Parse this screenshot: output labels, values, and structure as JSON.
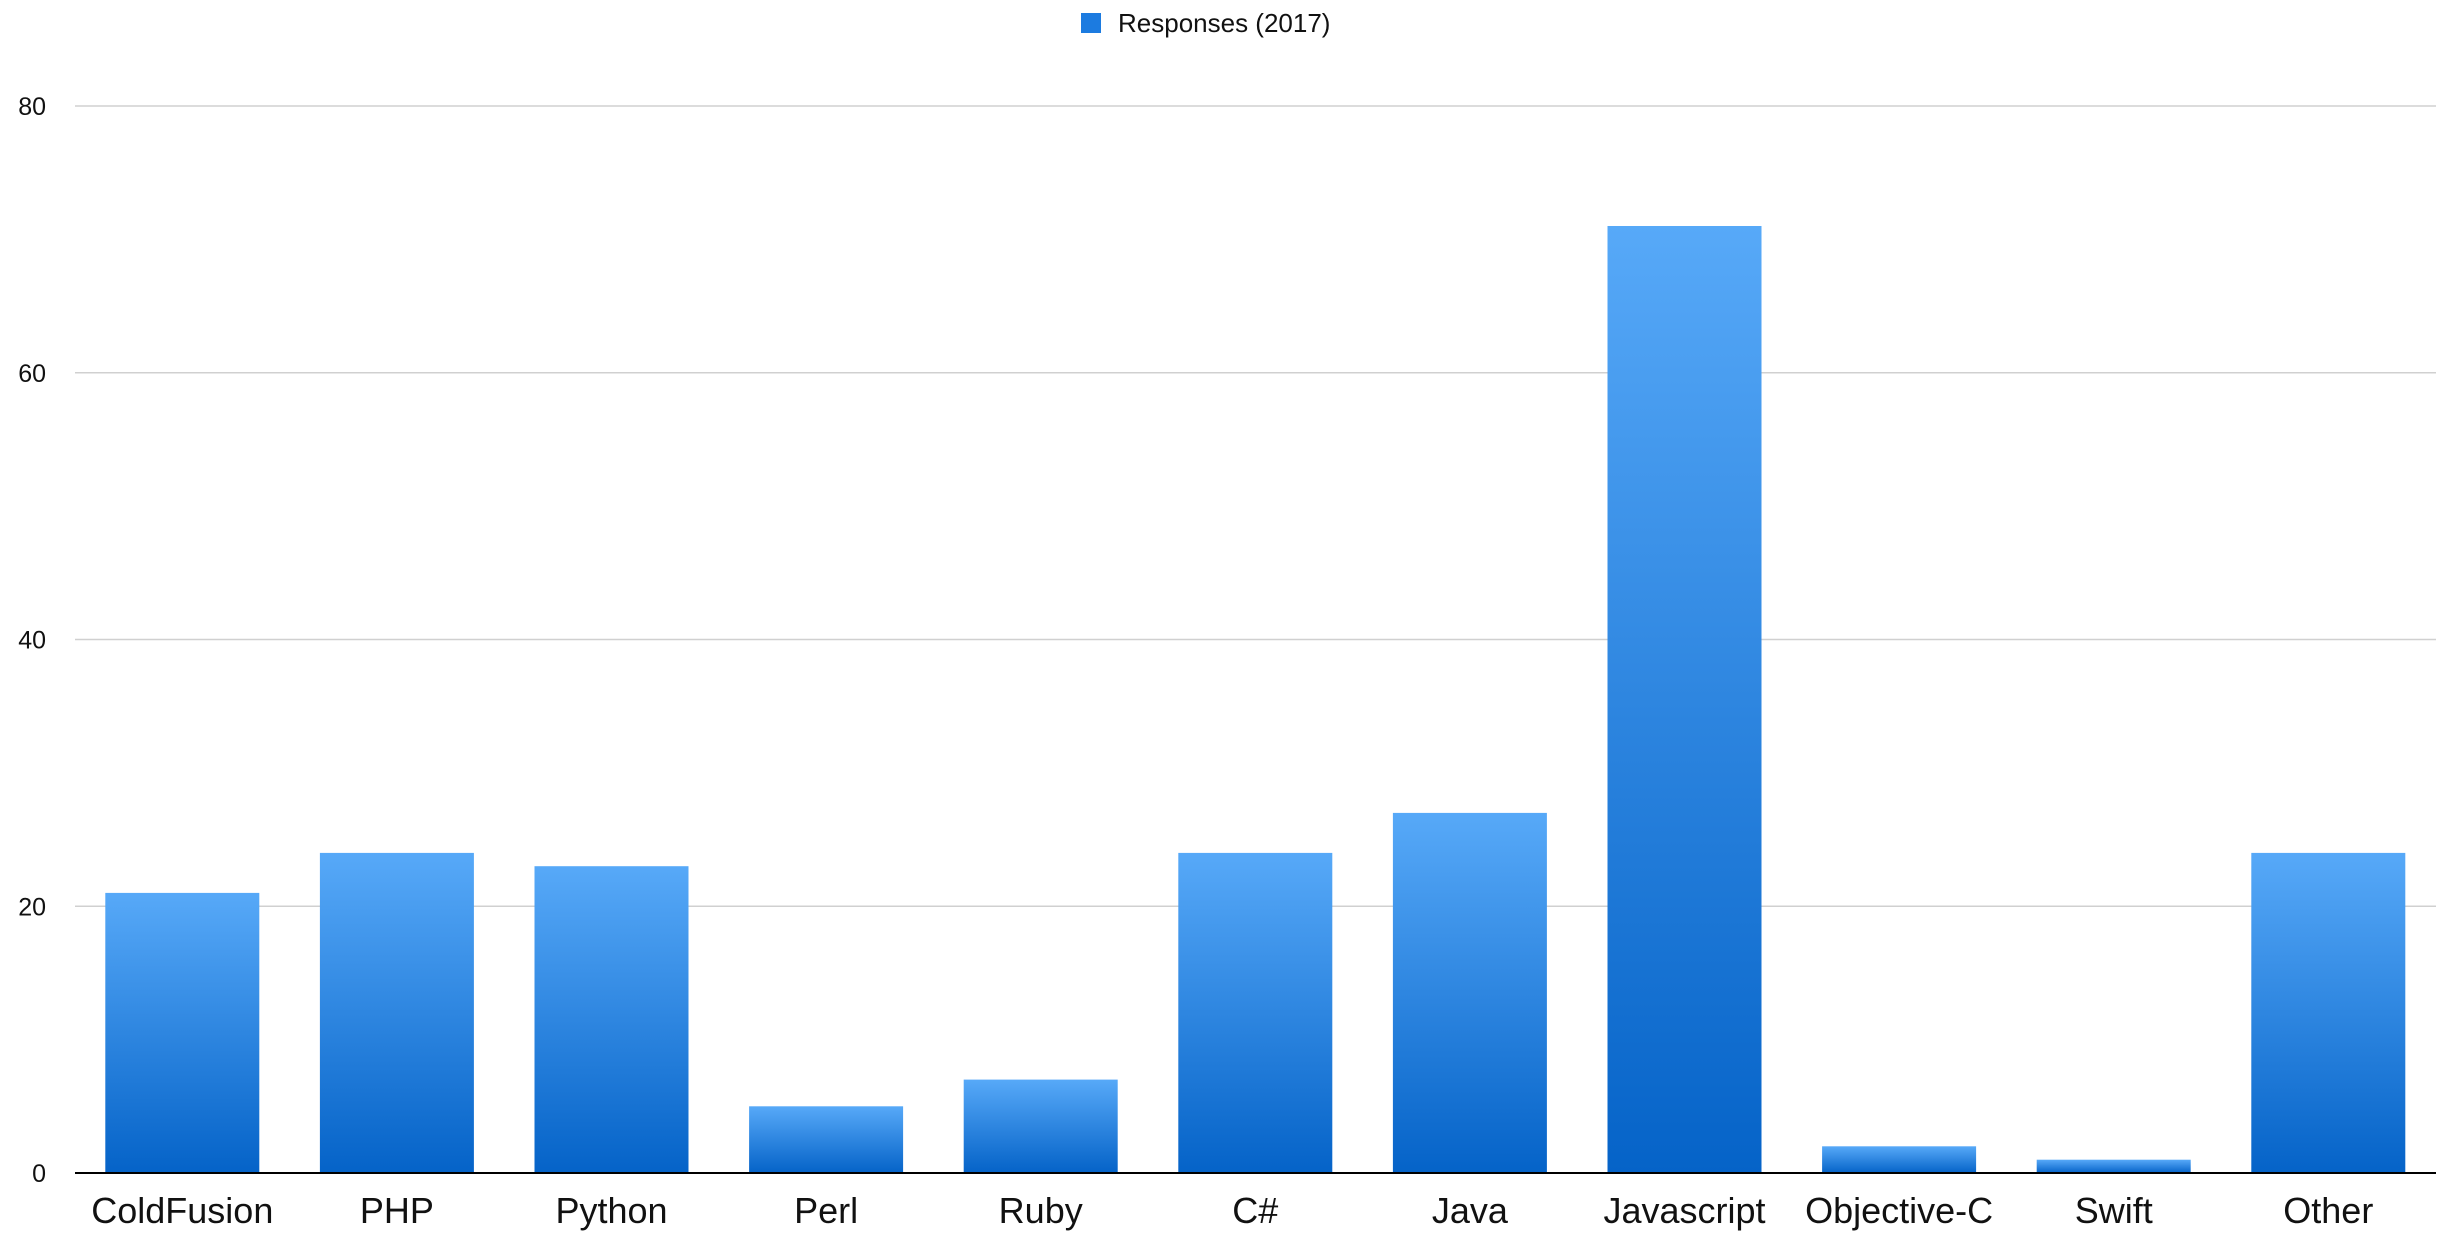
{
  "chart_data": {
    "type": "bar",
    "categories": [
      "ColdFusion",
      "PHP",
      "Python",
      "Perl",
      "Ruby",
      "C#",
      "Java",
      "Javascript",
      "Objective-C",
      "Swift",
      "Other"
    ],
    "series": [
      {
        "name": "Responses (2017)",
        "values": [
          21,
          24,
          23,
          5,
          7,
          24,
          27,
          71,
          2,
          1,
          24
        ]
      }
    ],
    "title": "",
    "xlabel": "",
    "ylabel": "",
    "ylim": [
      0,
      80
    ],
    "yticks": [
      "0",
      "20",
      "40",
      "60",
      "80"
    ],
    "grid": true,
    "legend_position": "top-center",
    "colors": {
      "bar_top": "#57A9F8",
      "bar_bottom": "#0563C8",
      "legend_swatch": "#1C7BE0",
      "gridline": "#D0D0D0",
      "axis": "#000000"
    }
  }
}
